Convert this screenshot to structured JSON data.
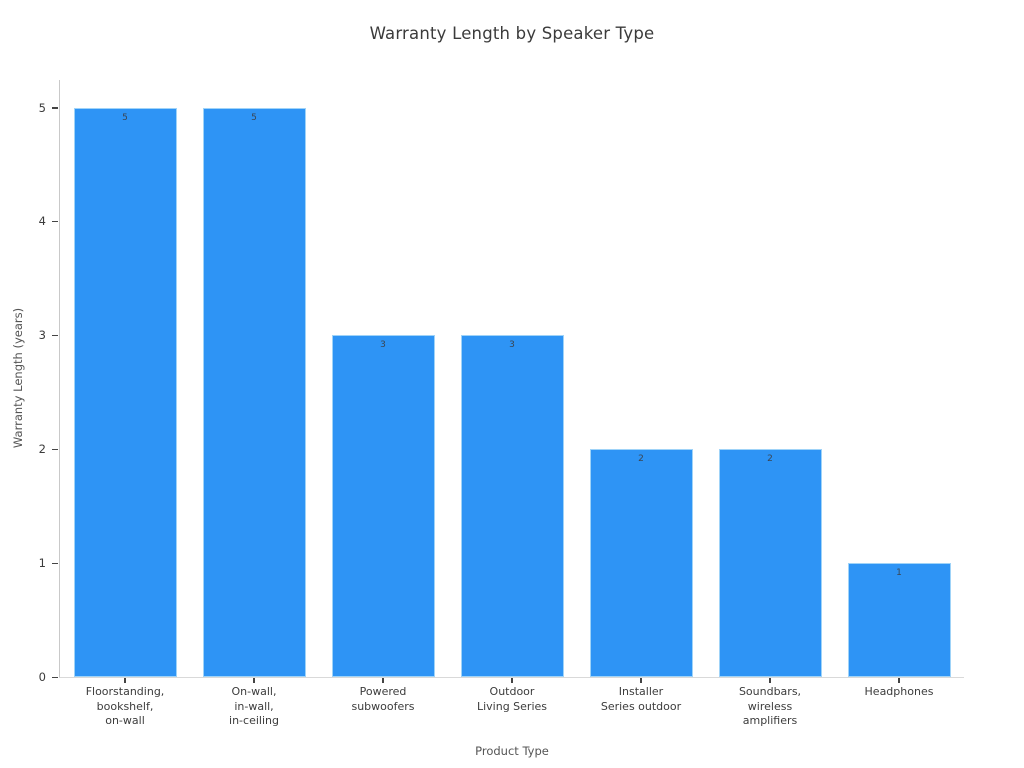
{
  "chart_data": {
    "type": "bar",
    "title": "Warranty Length by Speaker Type",
    "xlabel": "Product Type",
    "ylabel": "Warranty Length (years)",
    "categories": [
      "Floorstanding,\nbookshelf,\non-wall",
      "On-wall,\nin-wall,\nin-ceiling",
      "Powered\nsubwoofers",
      "Outdoor\nLiving Series",
      "Installer\nSeries outdoor",
      "Soundbars,\nwireless\namplifiers",
      "Headphones"
    ],
    "values": [
      5,
      5,
      3,
      3,
      2,
      2,
      1
    ],
    "bar_value_labels": [
      "5",
      "5",
      "3",
      "3",
      "2",
      "2",
      "1"
    ],
    "yticks": [
      0,
      1,
      2,
      3,
      4,
      5
    ],
    "ylim": [
      0,
      5.25
    ],
    "grid": "off",
    "legend": "none",
    "bar_color": "#2e94f5",
    "bar_edge_color": "#9fd3f8"
  }
}
